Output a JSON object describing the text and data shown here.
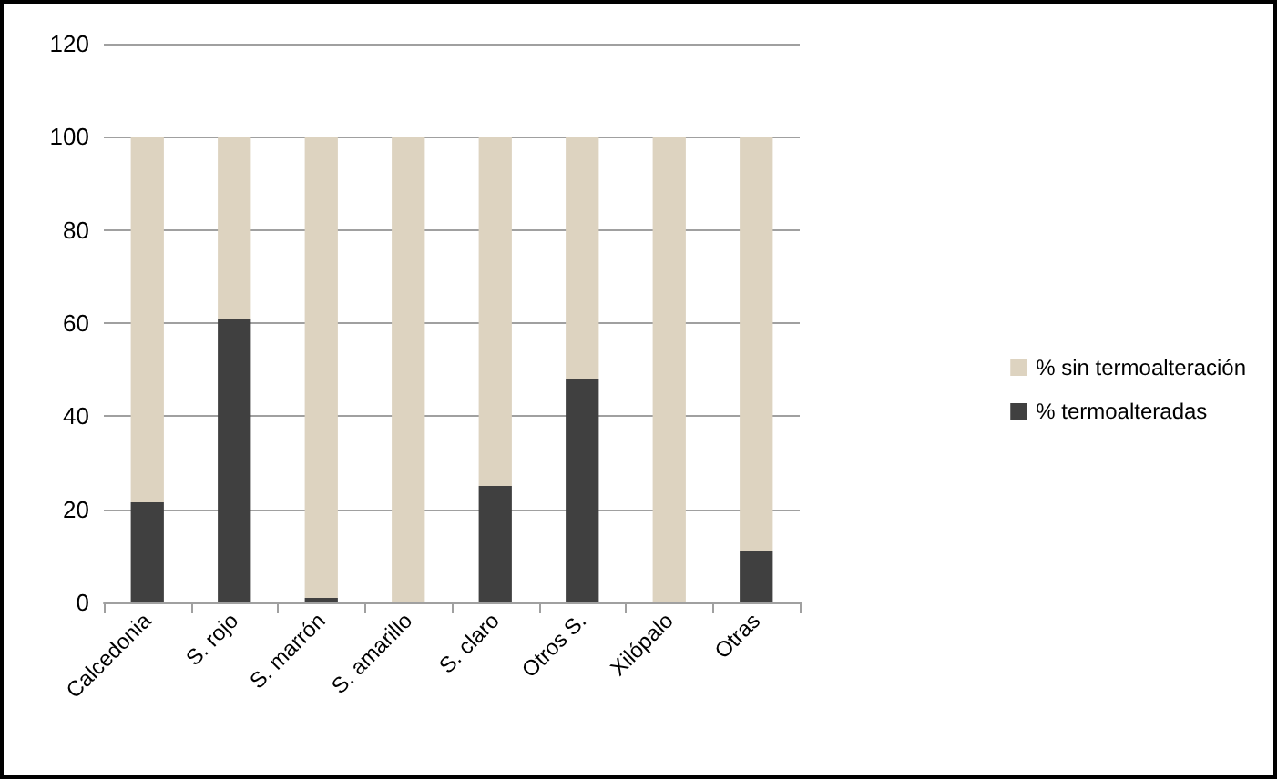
{
  "chart_data": {
    "type": "bar",
    "stacked": true,
    "categories": [
      "Calcedonia",
      "S. rojo",
      "S. marrón",
      "S. amarillo",
      "S. claro",
      "Otros S.",
      "Xilópalo",
      "Otras"
    ],
    "series": [
      {
        "name": "% termoalteradas",
        "color": "#404040",
        "values": [
          21.5,
          61,
          1,
          0,
          25,
          48,
          0,
          11
        ]
      },
      {
        "name": "% sin termoalteración",
        "color": "#ddd3c0",
        "values": [
          78.5,
          39,
          99,
          100,
          75,
          52,
          100,
          89
        ]
      }
    ],
    "ylim": [
      0,
      120
    ],
    "yticks": [
      0,
      20,
      40,
      60,
      80,
      100,
      120
    ],
    "grid": "y",
    "legend": "right"
  }
}
